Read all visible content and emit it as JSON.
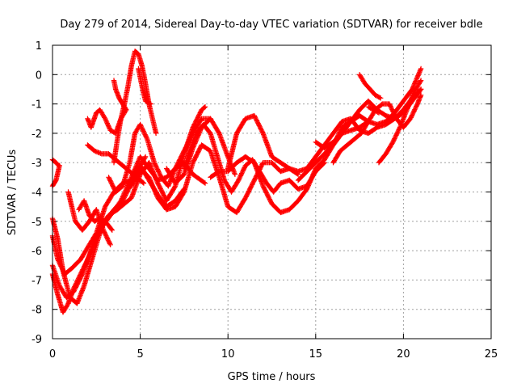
{
  "chart_data": {
    "type": "scatter",
    "title": "Day 279 of 2014, Sidereal Day-to-day VTEC variation (SDTVAR) for receiver bdle",
    "xlabel": "GPS time / hours",
    "ylabel": "SDTVAR / TECUs",
    "xlim": [
      0,
      25
    ],
    "ylim": [
      -9,
      1
    ],
    "xticks": [
      0,
      5,
      10,
      15,
      20,
      25
    ],
    "yticks": [
      -9,
      -8,
      -7,
      -6,
      -5,
      -4,
      -3,
      -2,
      -1,
      0,
      1
    ],
    "grid": true,
    "marker": "plus",
    "color": "#ff0000",
    "series": [
      {
        "x": [
          0.0,
          0.3,
          0.6,
          1.0,
          1.4,
          1.8,
          2.3,
          2.8,
          3.3,
          3.9,
          4.5,
          5.0,
          5.5,
          6.0,
          6.5,
          7.0,
          7.5,
          8.0,
          8.7
        ],
        "values": [
          -4.9,
          -5.6,
          -6.7,
          -7.6,
          -7.8,
          -7.2,
          -6.2,
          -5.2,
          -4.8,
          -4.3,
          -3.5,
          -2.8,
          -3.2,
          -3.6,
          -3.5,
          -3.2,
          -3.0,
          -3.4,
          -3.7
        ]
      },
      {
        "x": [
          0.0,
          0.4,
          0.8,
          1.2,
          1.7,
          2.2,
          2.7,
          3.2,
          3.7,
          4.1,
          4.5,
          5.0,
          5.5,
          6.0,
          6.5,
          7.0,
          7.5,
          8.0,
          8.5,
          8.7
        ],
        "values": [
          -6.5,
          -7.2,
          -7.6,
          -7.4,
          -6.8,
          -6.0,
          -5.2,
          -4.8,
          -4.6,
          -4.4,
          -4.2,
          -3.4,
          -3.0,
          -3.7,
          -4.3,
          -3.8,
          -2.7,
          -1.8,
          -1.2,
          -1.1
        ]
      },
      {
        "x": [
          0.0,
          0.3,
          0.6,
          0.9,
          1.2,
          1.6,
          2.0,
          2.5,
          3.0,
          3.5,
          4.0,
          4.5,
          5.0,
          5.5,
          6.0,
          6.5,
          7.0,
          7.5
        ],
        "values": [
          -6.8,
          -7.5,
          -8.1,
          -7.8,
          -7.3,
          -6.8,
          -6.3,
          -5.6,
          -5.0,
          -4.6,
          -4.3,
          -3.7,
          -3.1,
          -3.6,
          -4.1,
          -4.5,
          -4.3,
          -3.9
        ]
      },
      {
        "x": [
          0.0,
          0.3,
          0.7,
          1.1,
          1.6,
          2.1,
          2.5,
          3.0,
          3.5,
          4.0,
          4.5,
          5.0,
          5.3
        ],
        "values": [
          -5.5,
          -6.3,
          -6.8,
          -6.6,
          -6.3,
          -5.8,
          -5.4,
          -4.5,
          -4.0,
          -3.7,
          -3.6,
          -3.1,
          -2.8
        ]
      },
      {
        "x": [
          0.0,
          0.2,
          0.4
        ],
        "values": [
          -3.8,
          -3.6,
          -3.1
        ]
      },
      {
        "x": [
          0.0,
          0.2,
          0.35
        ],
        "values": [
          -2.9,
          -3.0,
          -3.1
        ]
      },
      {
        "x": [
          0.9,
          1.3,
          1.7,
          2.1,
          2.5,
          2.9,
          3.3
        ],
        "values": [
          -4.0,
          -5.0,
          -5.3,
          -5.0,
          -4.6,
          -5.3,
          -5.8
        ]
      },
      {
        "x": [
          1.5,
          1.8,
          2.1,
          2.4,
          2.7,
          3.0,
          3.4
        ],
        "values": [
          -4.6,
          -4.3,
          -4.8,
          -5.0,
          -4.9,
          -5.0,
          -5.3
        ]
      },
      {
        "x": [
          2.0,
          2.4,
          2.8,
          3.2,
          3.6,
          4.0,
          4.4,
          4.8,
          5.2
        ],
        "values": [
          -2.4,
          -2.6,
          -2.7,
          -2.7,
          -2.9,
          -3.1,
          -3.3,
          -3.5,
          -3.7
        ]
      },
      {
        "x": [
          2.0,
          2.2,
          2.5,
          2.7,
          3.0,
          3.3,
          3.6,
          3.9,
          4.2
        ],
        "values": [
          -1.5,
          -1.8,
          -1.3,
          -1.2,
          -1.5,
          -1.9,
          -2.0,
          -1.5,
          -1.2
        ]
      },
      {
        "x": [
          3.2,
          3.6,
          4.0,
          4.4,
          4.7,
          5.0,
          5.4,
          5.8,
          6.2,
          6.6,
          7.0,
          7.5,
          8.0,
          8.5,
          9.0
        ],
        "values": [
          -3.5,
          -4.0,
          -3.8,
          -3.0,
          -2.0,
          -1.7,
          -2.2,
          -3.0,
          -3.5,
          -3.8,
          -3.2,
          -2.6,
          -2.0,
          -1.5,
          -1.5
        ]
      },
      {
        "x": [
          3.5,
          3.7,
          3.9,
          4.1,
          4.3,
          4.5,
          4.7,
          4.9,
          5.1,
          5.3,
          5.5,
          5.7,
          5.9
        ],
        "values": [
          -3.0,
          -2.2,
          -1.5,
          -1.0,
          -0.4,
          0.3,
          0.8,
          0.7,
          0.3,
          -0.3,
          -1.0,
          -1.5,
          -2.0
        ]
      },
      {
        "x": [
          3.5,
          3.6,
          3.8,
          4.0,
          4.2
        ],
        "values": [
          -0.2,
          -0.5,
          -0.8,
          -1.0,
          -1.2
        ]
      },
      {
        "x": [
          4.9,
          5.1,
          5.3,
          5.6
        ],
        "values": [
          0.2,
          -0.4,
          -0.9,
          -1.0
        ]
      },
      {
        "x": [
          4.5,
          5.0,
          5.5,
          6.0,
          6.5,
          7.0,
          7.5,
          8.0,
          8.5,
          9.0,
          9.5,
          10.0,
          10.5,
          11.0,
          11.5,
          12.0,
          12.5,
          13.0,
          13.5,
          14.0
        ],
        "values": [
          -3.8,
          -3.2,
          -3.5,
          -4.2,
          -4.6,
          -4.5,
          -4.0,
          -3.0,
          -2.4,
          -2.6,
          -3.5,
          -4.5,
          -4.7,
          -4.2,
          -3.6,
          -3.0,
          -3.0,
          -3.3,
          -3.2,
          -3.4
        ]
      },
      {
        "x": [
          6.5,
          7.0,
          7.5,
          8.0,
          8.5,
          9.0,
          9.5,
          10.0,
          10.4
        ],
        "values": [
          -3.2,
          -3.7,
          -3.4,
          -2.5,
          -1.8,
          -1.5,
          -2.0,
          -2.8,
          -3.4
        ]
      },
      {
        "x": [
          7.5,
          7.8,
          8.2,
          8.6,
          9.0,
          9.4,
          9.8,
          10.2,
          10.6,
          11.0,
          11.4,
          11.8,
          12.2,
          12.6,
          13.0,
          13.5,
          14.0,
          14.5,
          15.0,
          15.5
        ],
        "values": [
          -3.2,
          -2.6,
          -2.0,
          -1.7,
          -2.0,
          -2.8,
          -3.6,
          -4.0,
          -3.6,
          -3.1,
          -2.9,
          -3.3,
          -3.7,
          -4.0,
          -3.7,
          -3.6,
          -3.9,
          -3.8,
          -3.3,
          -3.0
        ]
      },
      {
        "x": [
          9.0,
          9.5,
          10.0,
          10.5,
          11.0,
          11.5,
          12.0,
          12.5,
          13.0,
          13.5,
          14.0,
          14.5,
          15.0,
          15.5,
          16.0,
          16.5,
          17.0,
          17.5,
          18.0
        ],
        "values": [
          -3.5,
          -3.3,
          -3.3,
          -3.0,
          -2.8,
          -3.0,
          -3.8,
          -4.4,
          -4.7,
          -4.6,
          -4.3,
          -3.9,
          -3.2,
          -2.9,
          -2.4,
          -1.8,
          -1.6,
          -1.4,
          -1.6
        ]
      },
      {
        "x": [
          10.0,
          10.5,
          11.0,
          11.5,
          12.0,
          12.5,
          13.0,
          13.5,
          14.0,
          14.5,
          15.0,
          15.5,
          16.0,
          16.5,
          17.0,
          17.5,
          18.0,
          18.5,
          19.0,
          19.5,
          20.0,
          20.5,
          21.0
        ],
        "values": [
          -3.2,
          -2.0,
          -1.5,
          -1.4,
          -2.0,
          -2.8,
          -3.0,
          -3.2,
          -3.3,
          -3.2,
          -2.8,
          -2.4,
          -2.0,
          -1.6,
          -1.5,
          -1.9,
          -2.0,
          -1.8,
          -1.7,
          -1.5,
          -1.2,
          -0.8,
          -0.5
        ]
      },
      {
        "x": [
          14.0,
          14.5,
          15.0,
          15.5,
          16.0,
          16.5,
          17.0,
          17.5,
          18.0,
          18.5,
          19.0,
          19.5,
          20.0,
          20.5,
          21.0
        ],
        "values": [
          -3.6,
          -3.3,
          -3.0,
          -2.7,
          -2.4,
          -2.0,
          -1.6,
          -1.2,
          -0.9,
          -1.2,
          -1.4,
          -1.5,
          -1.3,
          -0.9,
          -0.5
        ]
      },
      {
        "x": [
          15.0,
          15.5,
          16.0,
          16.5,
          17.0,
          17.5,
          18.0,
          18.5,
          19.0,
          19.5,
          20.0,
          20.5,
          21.0
        ],
        "values": [
          -2.3,
          -2.5,
          -2.3,
          -2.0,
          -1.9,
          -1.8,
          -1.6,
          -1.7,
          -1.6,
          -1.3,
          -0.9,
          -0.5,
          0.2
        ]
      },
      {
        "x": [
          16.0,
          16.4,
          16.8,
          17.2,
          17.6,
          18.0,
          18.4,
          18.8,
          19.2,
          19.6,
          20.0,
          20.4,
          20.8,
          21.0
        ],
        "values": [
          -3.0,
          -2.6,
          -2.4,
          -2.2,
          -2.0,
          -1.6,
          -1.2,
          -1.0,
          -1.0,
          -1.5,
          -1.8,
          -1.5,
          -1.0,
          -0.7
        ]
      },
      {
        "x": [
          17.5,
          17.8,
          18.1,
          18.4,
          18.7
        ],
        "values": [
          0.0,
          -0.3,
          -0.5,
          -0.7,
          -0.8
        ]
      },
      {
        "x": [
          18.6,
          19.0,
          19.4,
          19.8,
          20.2,
          20.6,
          21.0
        ],
        "values": [
          -3.0,
          -2.7,
          -2.3,
          -1.8,
          -1.2,
          -0.6,
          -0.2
        ]
      },
      {
        "x": [
          18.0,
          18.3,
          18.6
        ],
        "values": [
          -1.1,
          -1.2,
          -1.3
        ]
      }
    ]
  }
}
